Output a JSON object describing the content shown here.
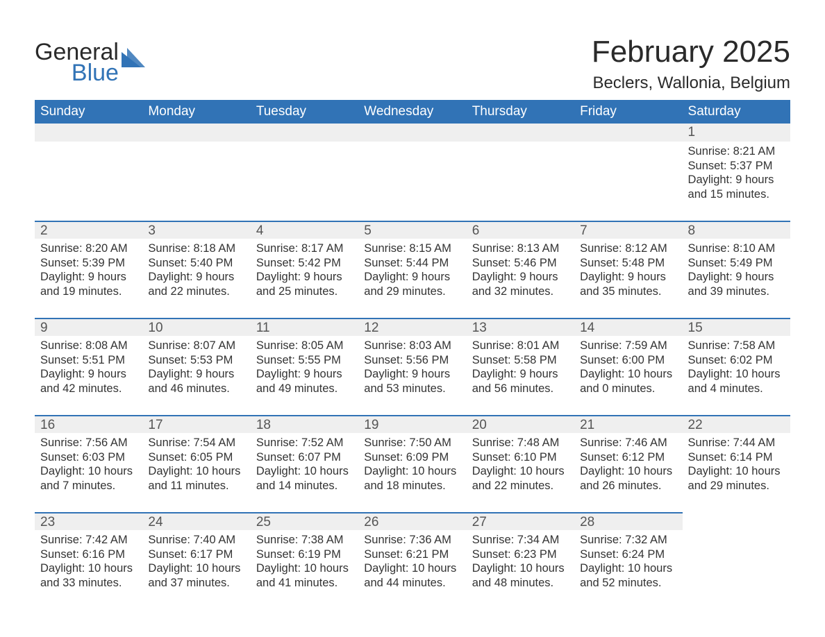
{
  "logo": {
    "word1": "General",
    "word2": "Blue",
    "accent_color": "#3173b6"
  },
  "title": "February 2025",
  "location": "Beclers, Wallonia, Belgium",
  "day_headers": [
    "Sunday",
    "Monday",
    "Tuesday",
    "Wednesday",
    "Thursday",
    "Friday",
    "Saturday"
  ],
  "colors": {
    "header_bg": "#3173b6",
    "header_text": "#ffffff",
    "daynum_bg": "#efefef",
    "row_border": "#3173b6",
    "body_text": "#333333"
  },
  "fonts": {
    "title_size_pt": 33,
    "location_size_pt": 18,
    "dayheader_size_pt": 14,
    "daynum_size_pt": 14,
    "body_size_pt": 12
  },
  "weeks": [
    [
      {
        "n": "",
        "sunrise": "",
        "sunset": "",
        "daylight": ""
      },
      {
        "n": "",
        "sunrise": "",
        "sunset": "",
        "daylight": ""
      },
      {
        "n": "",
        "sunrise": "",
        "sunset": "",
        "daylight": ""
      },
      {
        "n": "",
        "sunrise": "",
        "sunset": "",
        "daylight": ""
      },
      {
        "n": "",
        "sunrise": "",
        "sunset": "",
        "daylight": ""
      },
      {
        "n": "",
        "sunrise": "",
        "sunset": "",
        "daylight": ""
      },
      {
        "n": "1",
        "sunrise": "Sunrise: 8:21 AM",
        "sunset": "Sunset: 5:37 PM",
        "daylight": "Daylight: 9 hours and 15 minutes."
      }
    ],
    [
      {
        "n": "2",
        "sunrise": "Sunrise: 8:20 AM",
        "sunset": "Sunset: 5:39 PM",
        "daylight": "Daylight: 9 hours and 19 minutes."
      },
      {
        "n": "3",
        "sunrise": "Sunrise: 8:18 AM",
        "sunset": "Sunset: 5:40 PM",
        "daylight": "Daylight: 9 hours and 22 minutes."
      },
      {
        "n": "4",
        "sunrise": "Sunrise: 8:17 AM",
        "sunset": "Sunset: 5:42 PM",
        "daylight": "Daylight: 9 hours and 25 minutes."
      },
      {
        "n": "5",
        "sunrise": "Sunrise: 8:15 AM",
        "sunset": "Sunset: 5:44 PM",
        "daylight": "Daylight: 9 hours and 29 minutes."
      },
      {
        "n": "6",
        "sunrise": "Sunrise: 8:13 AM",
        "sunset": "Sunset: 5:46 PM",
        "daylight": "Daylight: 9 hours and 32 minutes."
      },
      {
        "n": "7",
        "sunrise": "Sunrise: 8:12 AM",
        "sunset": "Sunset: 5:48 PM",
        "daylight": "Daylight: 9 hours and 35 minutes."
      },
      {
        "n": "8",
        "sunrise": "Sunrise: 8:10 AM",
        "sunset": "Sunset: 5:49 PM",
        "daylight": "Daylight: 9 hours and 39 minutes."
      }
    ],
    [
      {
        "n": "9",
        "sunrise": "Sunrise: 8:08 AM",
        "sunset": "Sunset: 5:51 PM",
        "daylight": "Daylight: 9 hours and 42 minutes."
      },
      {
        "n": "10",
        "sunrise": "Sunrise: 8:07 AM",
        "sunset": "Sunset: 5:53 PM",
        "daylight": "Daylight: 9 hours and 46 minutes."
      },
      {
        "n": "11",
        "sunrise": "Sunrise: 8:05 AM",
        "sunset": "Sunset: 5:55 PM",
        "daylight": "Daylight: 9 hours and 49 minutes."
      },
      {
        "n": "12",
        "sunrise": "Sunrise: 8:03 AM",
        "sunset": "Sunset: 5:56 PM",
        "daylight": "Daylight: 9 hours and 53 minutes."
      },
      {
        "n": "13",
        "sunrise": "Sunrise: 8:01 AM",
        "sunset": "Sunset: 5:58 PM",
        "daylight": "Daylight: 9 hours and 56 minutes."
      },
      {
        "n": "14",
        "sunrise": "Sunrise: 7:59 AM",
        "sunset": "Sunset: 6:00 PM",
        "daylight": "Daylight: 10 hours and 0 minutes."
      },
      {
        "n": "15",
        "sunrise": "Sunrise: 7:58 AM",
        "sunset": "Sunset: 6:02 PM",
        "daylight": "Daylight: 10 hours and 4 minutes."
      }
    ],
    [
      {
        "n": "16",
        "sunrise": "Sunrise: 7:56 AM",
        "sunset": "Sunset: 6:03 PM",
        "daylight": "Daylight: 10 hours and 7 minutes."
      },
      {
        "n": "17",
        "sunrise": "Sunrise: 7:54 AM",
        "sunset": "Sunset: 6:05 PM",
        "daylight": "Daylight: 10 hours and 11 minutes."
      },
      {
        "n": "18",
        "sunrise": "Sunrise: 7:52 AM",
        "sunset": "Sunset: 6:07 PM",
        "daylight": "Daylight: 10 hours and 14 minutes."
      },
      {
        "n": "19",
        "sunrise": "Sunrise: 7:50 AM",
        "sunset": "Sunset: 6:09 PM",
        "daylight": "Daylight: 10 hours and 18 minutes."
      },
      {
        "n": "20",
        "sunrise": "Sunrise: 7:48 AM",
        "sunset": "Sunset: 6:10 PM",
        "daylight": "Daylight: 10 hours and 22 minutes."
      },
      {
        "n": "21",
        "sunrise": "Sunrise: 7:46 AM",
        "sunset": "Sunset: 6:12 PM",
        "daylight": "Daylight: 10 hours and 26 minutes."
      },
      {
        "n": "22",
        "sunrise": "Sunrise: 7:44 AM",
        "sunset": "Sunset: 6:14 PM",
        "daylight": "Daylight: 10 hours and 29 minutes."
      }
    ],
    [
      {
        "n": "23",
        "sunrise": "Sunrise: 7:42 AM",
        "sunset": "Sunset: 6:16 PM",
        "daylight": "Daylight: 10 hours and 33 minutes."
      },
      {
        "n": "24",
        "sunrise": "Sunrise: 7:40 AM",
        "sunset": "Sunset: 6:17 PM",
        "daylight": "Daylight: 10 hours and 37 minutes."
      },
      {
        "n": "25",
        "sunrise": "Sunrise: 7:38 AM",
        "sunset": "Sunset: 6:19 PM",
        "daylight": "Daylight: 10 hours and 41 minutes."
      },
      {
        "n": "26",
        "sunrise": "Sunrise: 7:36 AM",
        "sunset": "Sunset: 6:21 PM",
        "daylight": "Daylight: 10 hours and 44 minutes."
      },
      {
        "n": "27",
        "sunrise": "Sunrise: 7:34 AM",
        "sunset": "Sunset: 6:23 PM",
        "daylight": "Daylight: 10 hours and 48 minutes."
      },
      {
        "n": "28",
        "sunrise": "Sunrise: 7:32 AM",
        "sunset": "Sunset: 6:24 PM",
        "daylight": "Daylight: 10 hours and 52 minutes."
      },
      {
        "n": "",
        "sunrise": "",
        "sunset": "",
        "daylight": ""
      }
    ]
  ]
}
